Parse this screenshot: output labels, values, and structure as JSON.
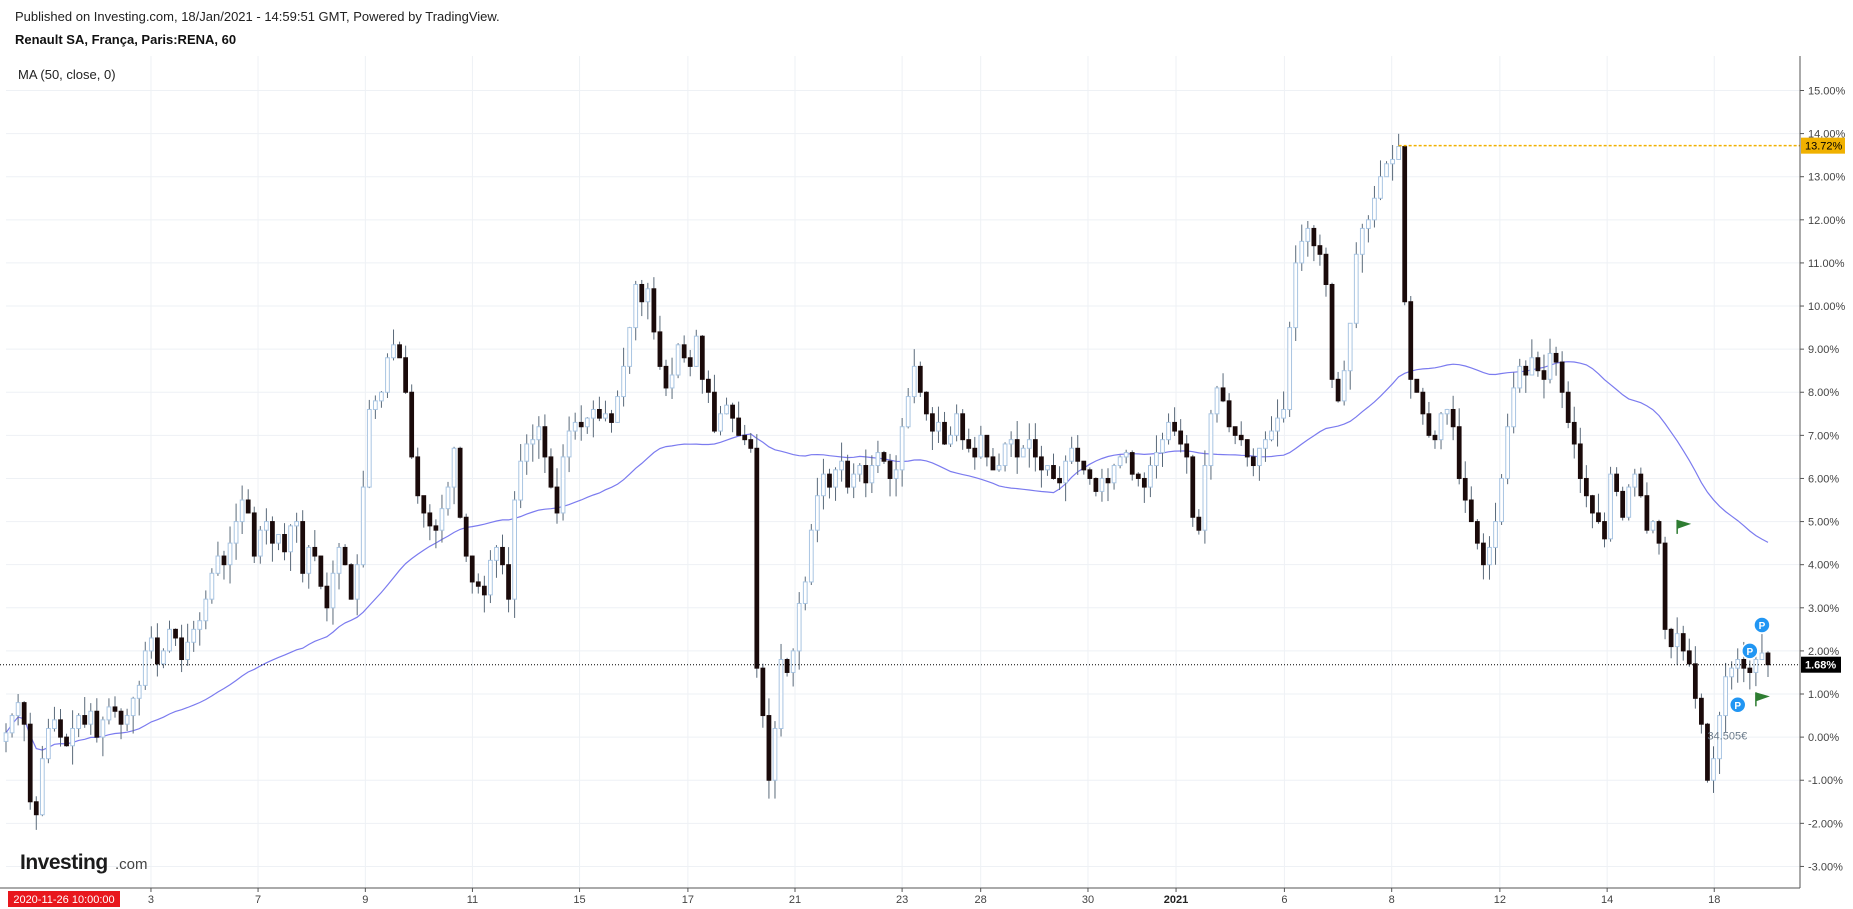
{
  "header": {
    "published": "Published on Investing.com, 18/Jan/2021 - 14:59:51 GMT, Powered by TradingView.",
    "symbol": "Renault SA, França, Paris:RENA, 60"
  },
  "legend": {
    "ma": "MA (50, close, 0)"
  },
  "branding": {
    "logo_text": "Investing",
    "logo_suffix": ".com"
  },
  "colors": {
    "up_body": "#ffffff",
    "up_border": "#a9c5e2",
    "down_body": "#1a0a0a",
    "wick": "#5a6a7a",
    "ma_line": "#7b7bef",
    "high_line": "#f0b100",
    "last_line": "#000000",
    "date_tag": "#e8171d",
    "grid": "#eef1f5",
    "pin": "#2196f3",
    "flag": "#2e7d32"
  },
  "chart_data": {
    "type": "candlestick",
    "y_unit": "%",
    "ylim": [
      -3.5,
      15.8
    ],
    "y_ticks": [
      "15.00%",
      "14.00%",
      "13.00%",
      "12.00%",
      "11.00%",
      "10.00%",
      "9.00%",
      "8.00%",
      "7.00%",
      "6.00%",
      "5.00%",
      "4.00%",
      "3.00%",
      "2.00%",
      "1.00%",
      "0.00%",
      "-1.00%",
      "-2.00%",
      "-3.00%"
    ],
    "y_tick_values": [
      15,
      14,
      13,
      12,
      11,
      10,
      9,
      8,
      7,
      6,
      5,
      4,
      3,
      2,
      1,
      0,
      -1,
      -2,
      -3
    ],
    "x_ticks": [
      {
        "label": "3",
        "pos": 0.0808
      },
      {
        "label": "7",
        "pos": 0.1405
      },
      {
        "label": "9",
        "pos": 0.2003
      },
      {
        "label": "11",
        "pos": 0.26
      },
      {
        "label": "15",
        "pos": 0.3197
      },
      {
        "label": "17",
        "pos": 0.3801
      },
      {
        "label": "21",
        "pos": 0.4398
      },
      {
        "label": "23",
        "pos": 0.4995
      },
      {
        "label": "28",
        "pos": 0.5433
      },
      {
        "label": "30",
        "pos": 0.6031
      },
      {
        "label": "2021",
        "pos": 0.6522,
        "bold": true
      },
      {
        "label": "6",
        "pos": 0.7126
      },
      {
        "label": "8",
        "pos": 0.7724
      },
      {
        "label": "12",
        "pos": 0.8327
      },
      {
        "label": "14",
        "pos": 0.8925
      },
      {
        "label": "18",
        "pos": 0.9522
      }
    ],
    "start_date_tag": "2020-11-26 10:00:00",
    "high_value": 13.72,
    "high_label": "13.72%",
    "last_value": 1.68,
    "last_label": "1.68%",
    "price_label": "34.505€",
    "ma_period": 50,
    "closes": [
      0.1,
      0.5,
      0.8,
      0.3,
      -1.5,
      -1.8,
      -0.5,
      0.2,
      0.4,
      0.0,
      -0.2,
      0.2,
      0.5,
      0.3,
      0.6,
      0.0,
      0.4,
      0.7,
      0.6,
      0.3,
      0.5,
      0.9,
      1.2,
      2.0,
      2.3,
      1.7,
      2.0,
      2.5,
      2.3,
      1.8,
      2.2,
      2.5,
      2.7,
      3.2,
      3.8,
      4.2,
      4.0,
      4.5,
      5.0,
      5.5,
      5.2,
      4.2,
      4.8,
      5.0,
      4.5,
      4.7,
      4.3,
      4.9,
      5.0,
      3.8,
      4.4,
      4.2,
      3.5,
      3.0,
      3.8,
      4.4,
      4.0,
      3.2,
      4.0,
      5.8,
      7.6,
      7.8,
      8.0,
      8.8,
      9.1,
      8.8,
      8.0,
      6.5,
      5.6,
      5.2,
      4.9,
      4.8,
      5.3,
      5.8,
      6.7,
      5.1,
      4.2,
      3.6,
      3.5,
      3.3,
      4.1,
      4.4,
      4.0,
      3.2,
      5.5,
      6.4,
      6.8,
      6.9,
      7.2,
      6.5,
      5.8,
      5.2,
      6.5,
      7.1,
      7.3,
      7.2,
      7.4,
      7.6,
      7.4,
      7.5,
      7.3,
      7.9,
      8.6,
      9.5,
      10.5,
      10.1,
      10.4,
      9.4,
      8.6,
      8.1,
      8.4,
      9.1,
      8.8,
      8.6,
      9.3,
      8.3,
      8.0,
      7.1,
      7.5,
      7.7,
      7.4,
      7.0,
      6.9,
      6.7,
      1.6,
      0.5,
      -1.0,
      0.2,
      1.8,
      1.5,
      2.0,
      3.1,
      3.6,
      4.8,
      5.6,
      6.1,
      5.8,
      6.2,
      6.4,
      5.8,
      6.1,
      6.3,
      5.9,
      6.3,
      6.6,
      6.4,
      6.0,
      6.2,
      7.2,
      7.9,
      8.6,
      8.0,
      7.5,
      7.1,
      7.3,
      6.8,
      7.0,
      7.5,
      6.9,
      6.7,
      6.5,
      7.0,
      6.5,
      6.2,
      6.3,
      6.8,
      6.9,
      6.5,
      6.7,
      6.9,
      6.5,
      6.2,
      6.3,
      6.0,
      5.9,
      6.4,
      6.7,
      6.4,
      6.2,
      6.0,
      5.7,
      6.0,
      5.9,
      6.3,
      6.5,
      6.6,
      6.1,
      6.0,
      5.8,
      6.3,
      6.6,
      6.9,
      7.3,
      7.1,
      6.8,
      6.5,
      5.1,
      4.8,
      6.3,
      7.5,
      8.1,
      7.8,
      7.2,
      7.0,
      6.9,
      6.5,
      6.3,
      6.7,
      6.9,
      7.1,
      7.4,
      7.6,
      9.5,
      11.0,
      11.5,
      11.8,
      11.4,
      11.2,
      10.5,
      8.3,
      7.8,
      8.5,
      9.6,
      11.2,
      11.8,
      12.0,
      12.5,
      13.0,
      13.3,
      13.4,
      13.7,
      10.1,
      8.3,
      8.0,
      7.5,
      7.0,
      6.9,
      7.5,
      7.6,
      7.2,
      6.0,
      5.5,
      5.0,
      4.5,
      4.0,
      4.4,
      5.0,
      6.0,
      7.2,
      8.1,
      8.6,
      8.4,
      8.8,
      8.5,
      8.3,
      8.9,
      8.7,
      8.0,
      7.3,
      6.8,
      6.0,
      5.6,
      5.2,
      5.0,
      4.6,
      6.1,
      5.7,
      5.1,
      5.8,
      6.1,
      5.6,
      4.8,
      5.0,
      4.5,
      2.5,
      2.1,
      2.4,
      2.0,
      1.7,
      0.9,
      0.3,
      -1.0,
      -0.5,
      0.5,
      1.4,
      1.6,
      1.8,
      1.6,
      1.5,
      1.8,
      1.95,
      1.68
    ]
  },
  "annotations": {
    "pin_label": "P",
    "pins": [
      {
        "bar": 290,
        "value": 2.6
      },
      {
        "bar": 288,
        "value": 2.0
      },
      {
        "bar": 286,
        "value": 0.75
      }
    ],
    "flags": [
      {
        "bar": 276,
        "value": 4.9
      },
      {
        "bar": 289,
        "value": 0.9
      }
    ]
  }
}
